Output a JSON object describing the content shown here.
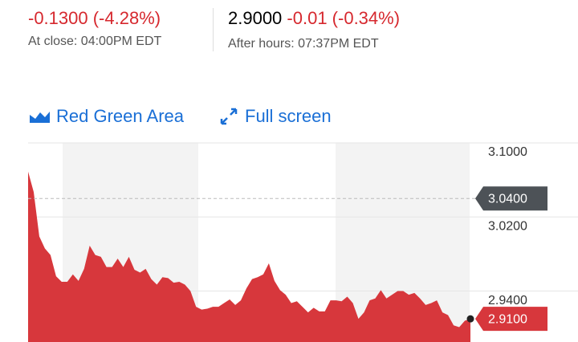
{
  "header": {
    "change": "-0.1300 (-4.28%)",
    "close_label": "At close: 04:00PM EDT",
    "after_price": "2.9000",
    "after_change": "-0.01 (-0.34%)",
    "after_label": "After hours: 07:37PM EDT"
  },
  "toolbar": {
    "chart_type": "Red Green Area",
    "fullscreen": "Full screen"
  },
  "chart_data": {
    "type": "area",
    "color": "#d7373c",
    "values": [
      3.069,
      3.047,
      2.999,
      2.986,
      2.979,
      2.956,
      2.95,
      2.95,
      2.958,
      2.951,
      2.964,
      2.989,
      2.979,
      2.977,
      2.966,
      2.966,
      2.975,
      2.966,
      2.977,
      2.963,
      2.96,
      2.964,
      2.953,
      2.947,
      2.955,
      2.954,
      2.949,
      2.95,
      2.947,
      2.94,
      2.923,
      2.92,
      2.921,
      2.923,
      2.923,
      2.927,
      2.931,
      2.925,
      2.93,
      2.943,
      2.953,
      2.955,
      2.958,
      2.97,
      2.951,
      2.941,
      2.936,
      2.927,
      2.929,
      2.923,
      2.917,
      2.922,
      2.918,
      2.918,
      2.93,
      2.93,
      2.929,
      2.934,
      2.927,
      2.91,
      2.917,
      2.93,
      2.932,
      2.941,
      2.932,
      2.936,
      2.94,
      2.94,
      2.936,
      2.938,
      2.932,
      2.925,
      2.927,
      2.93,
      2.917,
      2.914,
      2.903,
      2.901,
      2.908,
      2.91
    ],
    "ylim": [
      2.885,
      3.1
    ],
    "yticks": [
      {
        "value": 3.1,
        "label": "3.1000"
      },
      {
        "value": 3.02,
        "label": "3.0200"
      },
      {
        "value": 2.94,
        "label": "2.9400"
      }
    ],
    "grid": true,
    "reference": {
      "value": 3.04,
      "label": "3.0400"
    },
    "last": {
      "value": 2.91,
      "label": "2.9100"
    }
  }
}
